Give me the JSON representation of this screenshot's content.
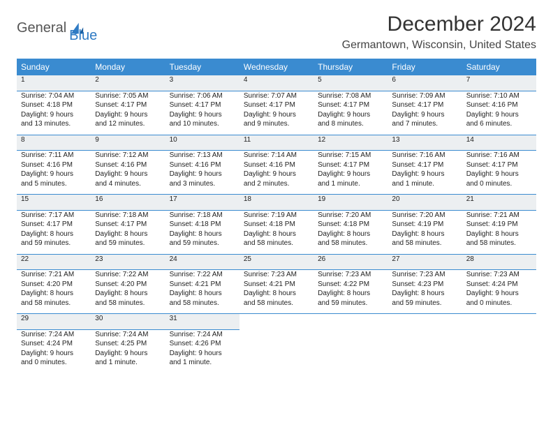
{
  "brand": {
    "word1": "General",
    "word2": "Blue"
  },
  "title": "December 2024",
  "location": "Germantown, Wisconsin, United States",
  "colors": {
    "header_bg": "#3a8bd0",
    "header_text": "#ffffff",
    "daynum_bg": "#eceff1",
    "border": "#3a8bd0",
    "brand_blue": "#2f7bc4",
    "brand_gray": "#555"
  },
  "weekdays": [
    "Sunday",
    "Monday",
    "Tuesday",
    "Wednesday",
    "Thursday",
    "Friday",
    "Saturday"
  ],
  "weeks": [
    [
      {
        "n": "1",
        "sr": "Sunrise: 7:04 AM",
        "ss": "Sunset: 4:18 PM",
        "dl": "Daylight: 9 hours and 13 minutes."
      },
      {
        "n": "2",
        "sr": "Sunrise: 7:05 AM",
        "ss": "Sunset: 4:17 PM",
        "dl": "Daylight: 9 hours and 12 minutes."
      },
      {
        "n": "3",
        "sr": "Sunrise: 7:06 AM",
        "ss": "Sunset: 4:17 PM",
        "dl": "Daylight: 9 hours and 10 minutes."
      },
      {
        "n": "4",
        "sr": "Sunrise: 7:07 AM",
        "ss": "Sunset: 4:17 PM",
        "dl": "Daylight: 9 hours and 9 minutes."
      },
      {
        "n": "5",
        "sr": "Sunrise: 7:08 AM",
        "ss": "Sunset: 4:17 PM",
        "dl": "Daylight: 9 hours and 8 minutes."
      },
      {
        "n": "6",
        "sr": "Sunrise: 7:09 AM",
        "ss": "Sunset: 4:17 PM",
        "dl": "Daylight: 9 hours and 7 minutes."
      },
      {
        "n": "7",
        "sr": "Sunrise: 7:10 AM",
        "ss": "Sunset: 4:16 PM",
        "dl": "Daylight: 9 hours and 6 minutes."
      }
    ],
    [
      {
        "n": "8",
        "sr": "Sunrise: 7:11 AM",
        "ss": "Sunset: 4:16 PM",
        "dl": "Daylight: 9 hours and 5 minutes."
      },
      {
        "n": "9",
        "sr": "Sunrise: 7:12 AM",
        "ss": "Sunset: 4:16 PM",
        "dl": "Daylight: 9 hours and 4 minutes."
      },
      {
        "n": "10",
        "sr": "Sunrise: 7:13 AM",
        "ss": "Sunset: 4:16 PM",
        "dl": "Daylight: 9 hours and 3 minutes."
      },
      {
        "n": "11",
        "sr": "Sunrise: 7:14 AM",
        "ss": "Sunset: 4:16 PM",
        "dl": "Daylight: 9 hours and 2 minutes."
      },
      {
        "n": "12",
        "sr": "Sunrise: 7:15 AM",
        "ss": "Sunset: 4:17 PM",
        "dl": "Daylight: 9 hours and 1 minute."
      },
      {
        "n": "13",
        "sr": "Sunrise: 7:16 AM",
        "ss": "Sunset: 4:17 PM",
        "dl": "Daylight: 9 hours and 1 minute."
      },
      {
        "n": "14",
        "sr": "Sunrise: 7:16 AM",
        "ss": "Sunset: 4:17 PM",
        "dl": "Daylight: 9 hours and 0 minutes."
      }
    ],
    [
      {
        "n": "15",
        "sr": "Sunrise: 7:17 AM",
        "ss": "Sunset: 4:17 PM",
        "dl": "Daylight: 8 hours and 59 minutes."
      },
      {
        "n": "16",
        "sr": "Sunrise: 7:18 AM",
        "ss": "Sunset: 4:17 PM",
        "dl": "Daylight: 8 hours and 59 minutes."
      },
      {
        "n": "17",
        "sr": "Sunrise: 7:18 AM",
        "ss": "Sunset: 4:18 PM",
        "dl": "Daylight: 8 hours and 59 minutes."
      },
      {
        "n": "18",
        "sr": "Sunrise: 7:19 AM",
        "ss": "Sunset: 4:18 PM",
        "dl": "Daylight: 8 hours and 58 minutes."
      },
      {
        "n": "19",
        "sr": "Sunrise: 7:20 AM",
        "ss": "Sunset: 4:18 PM",
        "dl": "Daylight: 8 hours and 58 minutes."
      },
      {
        "n": "20",
        "sr": "Sunrise: 7:20 AM",
        "ss": "Sunset: 4:19 PM",
        "dl": "Daylight: 8 hours and 58 minutes."
      },
      {
        "n": "21",
        "sr": "Sunrise: 7:21 AM",
        "ss": "Sunset: 4:19 PM",
        "dl": "Daylight: 8 hours and 58 minutes."
      }
    ],
    [
      {
        "n": "22",
        "sr": "Sunrise: 7:21 AM",
        "ss": "Sunset: 4:20 PM",
        "dl": "Daylight: 8 hours and 58 minutes."
      },
      {
        "n": "23",
        "sr": "Sunrise: 7:22 AM",
        "ss": "Sunset: 4:20 PM",
        "dl": "Daylight: 8 hours and 58 minutes."
      },
      {
        "n": "24",
        "sr": "Sunrise: 7:22 AM",
        "ss": "Sunset: 4:21 PM",
        "dl": "Daylight: 8 hours and 58 minutes."
      },
      {
        "n": "25",
        "sr": "Sunrise: 7:23 AM",
        "ss": "Sunset: 4:21 PM",
        "dl": "Daylight: 8 hours and 58 minutes."
      },
      {
        "n": "26",
        "sr": "Sunrise: 7:23 AM",
        "ss": "Sunset: 4:22 PM",
        "dl": "Daylight: 8 hours and 59 minutes."
      },
      {
        "n": "27",
        "sr": "Sunrise: 7:23 AM",
        "ss": "Sunset: 4:23 PM",
        "dl": "Daylight: 8 hours and 59 minutes."
      },
      {
        "n": "28",
        "sr": "Sunrise: 7:23 AM",
        "ss": "Sunset: 4:24 PM",
        "dl": "Daylight: 9 hours and 0 minutes."
      }
    ],
    [
      {
        "n": "29",
        "sr": "Sunrise: 7:24 AM",
        "ss": "Sunset: 4:24 PM",
        "dl": "Daylight: 9 hours and 0 minutes."
      },
      {
        "n": "30",
        "sr": "Sunrise: 7:24 AM",
        "ss": "Sunset: 4:25 PM",
        "dl": "Daylight: 9 hours and 1 minute."
      },
      {
        "n": "31",
        "sr": "Sunrise: 7:24 AM",
        "ss": "Sunset: 4:26 PM",
        "dl": "Daylight: 9 hours and 1 minute."
      },
      null,
      null,
      null,
      null
    ]
  ]
}
